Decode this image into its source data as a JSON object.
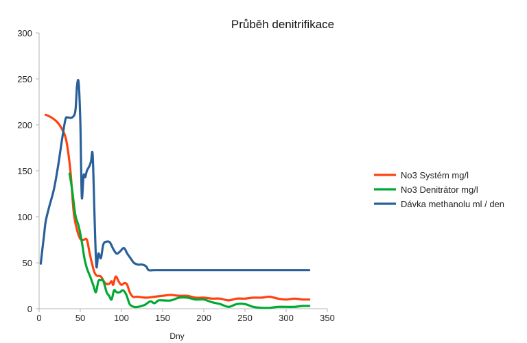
{
  "chart_data": {
    "type": "line",
    "title": "Průběh denitrifikace",
    "xlabel": "Dny",
    "ylabel": "",
    "xlim": [
      0,
      350
    ],
    "ylim": [
      0,
      300
    ],
    "x_ticks": [
      0,
      50,
      100,
      150,
      200,
      250,
      300,
      350
    ],
    "y_ticks": [
      0,
      50,
      100,
      150,
      200,
      250,
      300
    ],
    "grid": false,
    "legend_position": "right",
    "series": [
      {
        "name": "No3 Systém mg/l",
        "color": "#ff420e",
        "points": [
          [
            8,
            211
          ],
          [
            15,
            208
          ],
          [
            22,
            203
          ],
          [
            28,
            195
          ],
          [
            33,
            183
          ],
          [
            38,
            150
          ],
          [
            42,
            105
          ],
          [
            46,
            86
          ],
          [
            50,
            76
          ],
          [
            54,
            75
          ],
          [
            58,
            75
          ],
          [
            61,
            62
          ],
          [
            64,
            50
          ],
          [
            67,
            40
          ],
          [
            70,
            36
          ],
          [
            75,
            35
          ],
          [
            80,
            28
          ],
          [
            85,
            27
          ],
          [
            88,
            30
          ],
          [
            90,
            26
          ],
          [
            93,
            35
          ],
          [
            97,
            29
          ],
          [
            100,
            26
          ],
          [
            104,
            28
          ],
          [
            107,
            26
          ],
          [
            110,
            18
          ],
          [
            114,
            13
          ],
          [
            120,
            13
          ],
          [
            130,
            12
          ],
          [
            140,
            13
          ],
          [
            150,
            14
          ],
          [
            160,
            15
          ],
          [
            170,
            14
          ],
          [
            180,
            14
          ],
          [
            190,
            12
          ],
          [
            200,
            12
          ],
          [
            210,
            11
          ],
          [
            220,
            11
          ],
          [
            230,
            9
          ],
          [
            240,
            11
          ],
          [
            250,
            11
          ],
          [
            260,
            12
          ],
          [
            270,
            12
          ],
          [
            280,
            13
          ],
          [
            290,
            11
          ],
          [
            300,
            10
          ],
          [
            310,
            11
          ],
          [
            320,
            10
          ],
          [
            328,
            10
          ]
        ]
      },
      {
        "name": "No3 Denitrátor mg/l",
        "color": "#00a933",
        "points": [
          [
            37,
            147
          ],
          [
            40,
            130
          ],
          [
            44,
            102
          ],
          [
            48,
            90
          ],
          [
            52,
            72
          ],
          [
            55,
            55
          ],
          [
            58,
            44
          ],
          [
            62,
            35
          ],
          [
            66,
            25
          ],
          [
            69,
            18
          ],
          [
            72,
            30
          ],
          [
            75,
            31
          ],
          [
            78,
            30
          ],
          [
            82,
            18
          ],
          [
            85,
            14
          ],
          [
            88,
            10
          ],
          [
            91,
            20
          ],
          [
            94,
            18
          ],
          [
            98,
            18
          ],
          [
            102,
            20
          ],
          [
            106,
            15
          ],
          [
            110,
            5
          ],
          [
            115,
            2
          ],
          [
            120,
            2
          ],
          [
            128,
            4
          ],
          [
            135,
            8
          ],
          [
            140,
            6
          ],
          [
            145,
            9
          ],
          [
            150,
            9
          ],
          [
            160,
            9
          ],
          [
            170,
            12
          ],
          [
            180,
            12
          ],
          [
            190,
            10
          ],
          [
            200,
            10
          ],
          [
            210,
            7
          ],
          [
            220,
            5
          ],
          [
            230,
            2
          ],
          [
            240,
            5
          ],
          [
            250,
            5
          ],
          [
            260,
            2
          ],
          [
            270,
            1
          ],
          [
            280,
            1
          ],
          [
            290,
            2
          ],
          [
            300,
            2
          ],
          [
            310,
            2
          ],
          [
            320,
            3
          ],
          [
            328,
            3
          ]
        ]
      },
      {
        "name": "Dávka methanolu ml / den",
        "color": "#2a6099",
        "points": [
          [
            2,
            49
          ],
          [
            4,
            65
          ],
          [
            6,
            80
          ],
          [
            8,
            95
          ],
          [
            12,
            110
          ],
          [
            18,
            130
          ],
          [
            23,
            155
          ],
          [
            28,
            185
          ],
          [
            32,
            206
          ],
          [
            35,
            208
          ],
          [
            40,
            208
          ],
          [
            44,
            215
          ],
          [
            46,
            242
          ],
          [
            48,
            246
          ],
          [
            50,
            205
          ],
          [
            51,
            155
          ],
          [
            52,
            120
          ],
          [
            54,
            145
          ],
          [
            56,
            143
          ],
          [
            58,
            150
          ],
          [
            61,
            155
          ],
          [
            63,
            160
          ],
          [
            65,
            168
          ],
          [
            67,
            110
          ],
          [
            68,
            80
          ],
          [
            69,
            55
          ],
          [
            70,
            45
          ],
          [
            72,
            60
          ],
          [
            75,
            55
          ],
          [
            78,
            70
          ],
          [
            82,
            73
          ],
          [
            86,
            72
          ],
          [
            90,
            65
          ],
          [
            94,
            60
          ],
          [
            98,
            62
          ],
          [
            103,
            66
          ],
          [
            107,
            60
          ],
          [
            111,
            55
          ],
          [
            115,
            50
          ],
          [
            120,
            48
          ],
          [
            125,
            48
          ],
          [
            130,
            46
          ],
          [
            133,
            42
          ],
          [
            140,
            42
          ],
          [
            160,
            42
          ],
          [
            200,
            42
          ],
          [
            250,
            42
          ],
          [
            300,
            42
          ],
          [
            328,
            42
          ]
        ]
      }
    ]
  }
}
